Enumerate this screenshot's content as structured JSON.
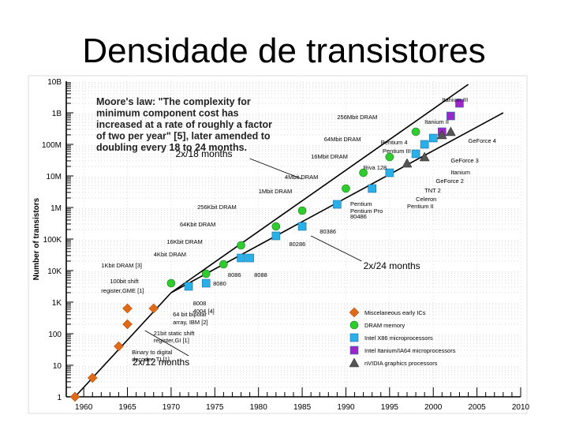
{
  "slide": {
    "title": "Densidade de transistores"
  },
  "chart_data": {
    "type": "scatter",
    "ylabel": "Number of transistors",
    "yscale": "log",
    "xlim": [
      1958,
      2010
    ],
    "ylim_exp": [
      0,
      10
    ],
    "x_ticks": [
      "1960",
      "1965",
      "1970",
      "1975",
      "1980",
      "1985",
      "1990",
      "1995",
      "2000",
      "2005",
      "2010"
    ],
    "y_ticks": [
      "1",
      "10",
      "100",
      "1K",
      "10K",
      "100K",
      "1M",
      "10M",
      "100M",
      "1B",
      "10B"
    ],
    "quote": [
      "Moore's law: \"The complexity for",
      "minimum component cost has",
      "increased at a rate of roughly a factor",
      "of two per year\" [5], later amended to",
      "doubling every 18 to 24 months."
    ],
    "trend_lines": [
      {
        "name": "2x/12 months",
        "points": [
          [
            1959,
            0
          ],
          [
            1970,
            3.3
          ]
        ]
      },
      {
        "name": "2x/18 months",
        "points": [
          [
            1970,
            3.3
          ],
          [
            2004,
            9.9
          ]
        ]
      },
      {
        "name": "2x/24 months",
        "points": [
          [
            1970,
            3.3
          ],
          [
            2008,
            9.0
          ]
        ]
      }
    ],
    "trend_labels": [
      "2x/12 months",
      "2x/18 months",
      "2x/24 months"
    ],
    "colors": {
      "misc": "#e06a18",
      "dram": "#2ecc2e",
      "intel_x86": "#29b0e8",
      "itanium": "#9d26c9",
      "nvidia": "#555555"
    },
    "legend": [
      {
        "label": "Miscelaneous early ICs",
        "marker": "diamond",
        "color": "#e06a18"
      },
      {
        "label": "DRAM memory",
        "marker": "circle",
        "color": "#2ecc2e"
      },
      {
        "label": "Intel X86 microprocessors",
        "marker": "square",
        "color": "#29b0e8"
      },
      {
        "label": "Intel Itanium/IA64 microprocessors",
        "marker": "square",
        "color": "#9d26c9"
      },
      {
        "label": "nVIDIA graphics processors",
        "marker": "triangle",
        "color": "#555555"
      }
    ],
    "series": [
      {
        "key": "misc",
        "marker": "diamond",
        "points": [
          [
            1959,
            0
          ],
          [
            1961,
            0.6
          ],
          [
            1964,
            1.6
          ],
          [
            1965,
            2.3
          ],
          [
            1965,
            2.8
          ],
          [
            1968,
            2.8
          ]
        ]
      },
      {
        "key": "dram",
        "marker": "circle",
        "points": [
          [
            1970,
            3.6
          ],
          [
            1974,
            3.9
          ],
          [
            1976,
            4.2
          ],
          [
            1978,
            4.8
          ],
          [
            1982,
            5.4
          ],
          [
            1985,
            5.9
          ],
          [
            1990,
            6.6
          ],
          [
            1992,
            7.1
          ],
          [
            1995,
            7.6
          ],
          [
            1998,
            8.4
          ]
        ]
      },
      {
        "key": "intel_x86",
        "marker": "square",
        "points": [
          [
            1972,
            3.5
          ],
          [
            1974,
            3.6
          ],
          [
            1978,
            4.4
          ],
          [
            1979,
            4.4
          ],
          [
            1982,
            5.1
          ],
          [
            1985,
            5.4
          ],
          [
            1989,
            6.1
          ],
          [
            1993,
            6.6
          ],
          [
            1995,
            7.1
          ],
          [
            1998,
            7.7
          ],
          [
            1999,
            8.0
          ],
          [
            2000,
            8.2
          ]
        ]
      },
      {
        "key": "itanium",
        "marker": "square",
        "points": [
          [
            2001,
            8.4
          ],
          [
            2002,
            8.9
          ],
          [
            2003,
            9.3
          ]
        ]
      },
      {
        "key": "nvidia",
        "marker": "triangle",
        "points": [
          [
            1997,
            7.4
          ],
          [
            1999,
            7.6
          ],
          [
            2001,
            8.3
          ],
          [
            2002,
            8.4
          ]
        ]
      }
    ],
    "annotations": [
      {
        "text": "1Kbit DRAM [3]",
        "x": 1962,
        "y": 4.1
      },
      {
        "text": "4Kbit DRAM",
        "x": 1968,
        "y": 4.45
      },
      {
        "text": "16Kbit DRAM",
        "x": 1969.5,
        "y": 4.85
      },
      {
        "text": "64Kbit DRAM",
        "x": 1971,
        "y": 5.4
      },
      {
        "text": "256Kbit DRAM",
        "x": 1973,
        "y": 5.95
      },
      {
        "text": "1Mbit DRAM",
        "x": 1980,
        "y": 6.45
      },
      {
        "text": "4Mbit DRAM",
        "x": 1983,
        "y": 6.9
      },
      {
        "text": "16Mbit DRAM",
        "x": 1986,
        "y": 7.55
      },
      {
        "text": "64Mbit DRAM",
        "x": 1987.5,
        "y": 8.1
      },
      {
        "text": "256Mbit DRAM",
        "x": 1989,
        "y": 8.8
      },
      {
        "text": "100bit shift",
        "x": 1963,
        "y": 3.6
      },
      {
        "text": "register,GME [1]",
        "x": 1962,
        "y": 3.3
      },
      {
        "text": "64 bit bipolar",
        "x": 1970.2,
        "y": 2.55
      },
      {
        "text": "array, IBM [2]",
        "x": 1970.2,
        "y": 2.3
      },
      {
        "text": "21bit static shift",
        "x": 1968,
        "y": 1.95
      },
      {
        "text": "register,GI [1]",
        "x": 1968,
        "y": 1.72
      },
      {
        "text": "Binary to digital",
        "x": 1965.5,
        "y": 1.35
      },
      {
        "text": "decoder, TI [1]",
        "x": 1965.5,
        "y": 1.12
      },
      {
        "text": "8008",
        "x": 1972.5,
        "y": 2.9
      },
      {
        "text": "4004 [4]",
        "x": 1972.5,
        "y": 2.65
      },
      {
        "text": "8080",
        "x": 1974.8,
        "y": 3.52
      },
      {
        "text": "8086",
        "x": 1976.5,
        "y": 3.8
      },
      {
        "text": "8088",
        "x": 1979.5,
        "y": 3.8
      },
      {
        "text": "80286",
        "x": 1983.5,
        "y": 4.78
      },
      {
        "text": "80386",
        "x": 1987,
        "y": 5.18
      },
      {
        "text": "80486",
        "x": 1990.5,
        "y": 5.65
      },
      {
        "text": "Pentium",
        "x": 1990.5,
        "y": 6.05
      },
      {
        "text": "Pentium Pro",
        "x": 1990.5,
        "y": 5.82
      },
      {
        "text": "Riva 128",
        "x": 1992,
        "y": 7.2
      },
      {
        "text": "Pentium 4",
        "x": 1994,
        "y": 8.0
      },
      {
        "text": "Pentium III",
        "x": 1994.2,
        "y": 7.72
      },
      {
        "text": "Celeron",
        "x": 1998,
        "y": 6.2
      },
      {
        "text": "Pentium II",
        "x": 1997,
        "y": 5.98
      },
      {
        "text": "TNT 2",
        "x": 1999,
        "y": 6.48
      },
      {
        "text": "GeForce 2",
        "x": 2000.3,
        "y": 6.78
      },
      {
        "text": "Itanium",
        "x": 2002,
        "y": 7.05
      },
      {
        "text": "GeForce 3",
        "x": 2002,
        "y": 7.43
      },
      {
        "text": "GeForce 4",
        "x": 2004,
        "y": 8.05
      },
      {
        "text": "Itanium II",
        "x": 1999,
        "y": 8.65
      },
      {
        "text": "Itanium III",
        "x": 2001,
        "y": 9.35
      }
    ]
  }
}
